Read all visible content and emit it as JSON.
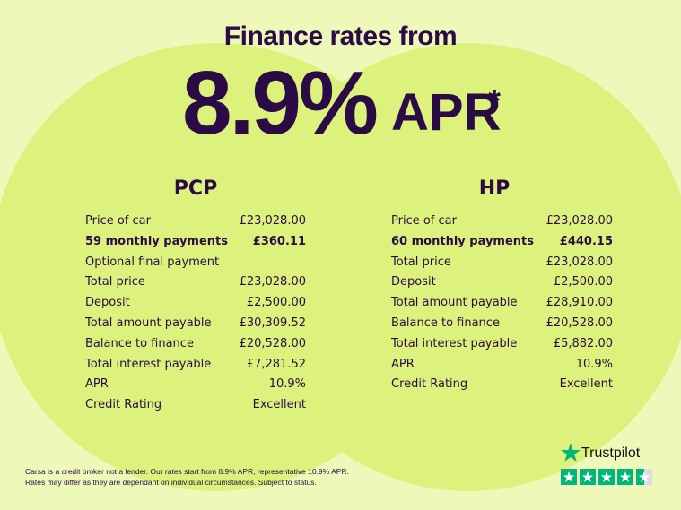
{
  "header": {
    "title": "Finance rates from",
    "rate": "8.9%",
    "suffix": "APR",
    "mark": "*"
  },
  "tables": [
    {
      "heading": "PCP",
      "rows": [
        {
          "label": "Price of car",
          "value": "£23,028.00"
        },
        {
          "label": "59 monthly payments",
          "value": "£360.11"
        },
        {
          "label": "Optional final payment"
        },
        {
          "label": "Total price",
          "value": "£23,028.00"
        },
        {
          "label": "Deposit",
          "value": "£2,500.00"
        },
        {
          "label": "Total amount payable",
          "value": "£30,309.52"
        },
        {
          "label": "Balance to finance",
          "value": "£20,528.00"
        },
        {
          "label": "Total interest payable",
          "value": "£7,281.52"
        },
        {
          "label": "APR",
          "value": "10.9%"
        },
        {
          "label": "Credit Rating",
          "value": "Excellent"
        }
      ]
    },
    {
      "heading": "HP",
      "rows": [
        {
          "label": "Price of car",
          "value": "£23,028.00"
        },
        {
          "label": "60 monthly payments",
          "value": "£440.15"
        },
        {
          "label": "Total price",
          "value": "£23,028.00"
        },
        {
          "label": "Deposit",
          "value": "£2,500.00"
        },
        {
          "label": "Total amount payable",
          "value": "£28,910.00"
        },
        {
          "label": "Balance to finance",
          "value": "£20,528.00"
        },
        {
          "label": "Total interest payable",
          "value": "£5,882.00"
        },
        {
          "label": "APR",
          "value": "10.9%"
        },
        {
          "label": "Credit Rating",
          "value": "Excellent"
        }
      ]
    }
  ],
  "footer": {
    "lines": [
      "Carsa is a credit broker not a lender. Our rates start from 8.9% APR, representative 10.9% APR.",
      "Rates may differ as they are dependant on individual circumstances. Subject to status."
    ],
    "brand": "Trustpilot"
  }
}
